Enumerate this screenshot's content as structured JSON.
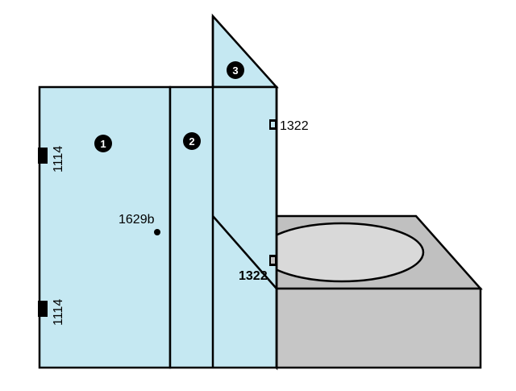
{
  "colors": {
    "glass": "#c5e8f2",
    "tub_side": "#c6c6c6",
    "tub_top": "#c0c0c0",
    "basin": "#d9d9d9",
    "outline": "#000000"
  },
  "panels": {
    "panel_1": "1",
    "panel_2": "2",
    "panel_3": "3"
  },
  "hardware": {
    "hinge_top": "1114",
    "hinge_bottom": "1114",
    "knob": "1629b",
    "clip_upper": "1322",
    "clip_lower": "1322"
  }
}
